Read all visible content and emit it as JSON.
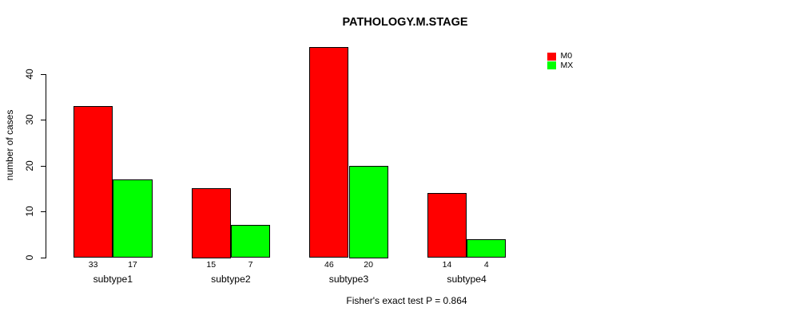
{
  "chart_data": {
    "type": "bar",
    "title": "PATHOLOGY.M.STAGE",
    "xlabel": "",
    "ylabel": "number of cases",
    "categories": [
      "subtype1",
      "subtype2",
      "subtype3",
      "subtype4"
    ],
    "series": [
      {
        "name": "M0",
        "color": "#ff0000",
        "values": [
          33,
          15,
          46,
          14
        ]
      },
      {
        "name": "MX",
        "color": "#00ff00",
        "values": [
          17,
          7,
          20,
          4
        ]
      }
    ],
    "yticks": [
      0,
      10,
      20,
      30,
      40
    ],
    "ylim": [
      0,
      47.8
    ],
    "grid": false,
    "legend_position": "top-right",
    "bar_border_color": "#000000",
    "background_color": "#ffffff",
    "text_color": "#000000",
    "annotation": "Fisher's exact test P = 0.864"
  }
}
